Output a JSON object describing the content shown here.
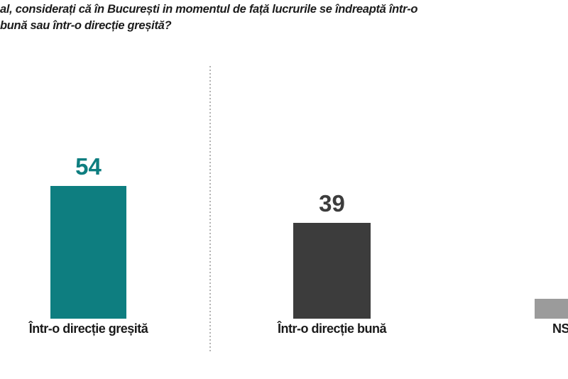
{
  "title": {
    "line1": "al, considerați că în București in momentul de față lucrurile se îndreaptă într-o",
    "line2": "bună sau într-o direcție greșită?"
  },
  "chart_data": {
    "type": "bar",
    "title": "al, considerați că în București in momentul de față lucrurile se îndreaptă într-o bună sau într-o direcție greșită?",
    "categories": [
      "Într-o direcție greșită",
      "Într-o direcție bună",
      "NS"
    ],
    "values": [
      54,
      39,
      8
    ],
    "value_labels": [
      "54",
      "39",
      ""
    ],
    "colors": [
      "#0E7E80",
      "#3C3C3C",
      "#9B9B9B"
    ],
    "value_label_colors": [
      "#0E7E80",
      "#3C3C3C",
      "#9B9B9B"
    ],
    "xlabel": "",
    "ylabel": "",
    "ylim": [
      0,
      60
    ],
    "grid": false,
    "legend": false,
    "layout_hints": {
      "divider_between_first_and_second_bar": true,
      "third_bar_clipped_at_right_edge": true
    }
  },
  "style": {
    "divider_color": "#B3B3B3",
    "background": "#FFFFFF"
  }
}
